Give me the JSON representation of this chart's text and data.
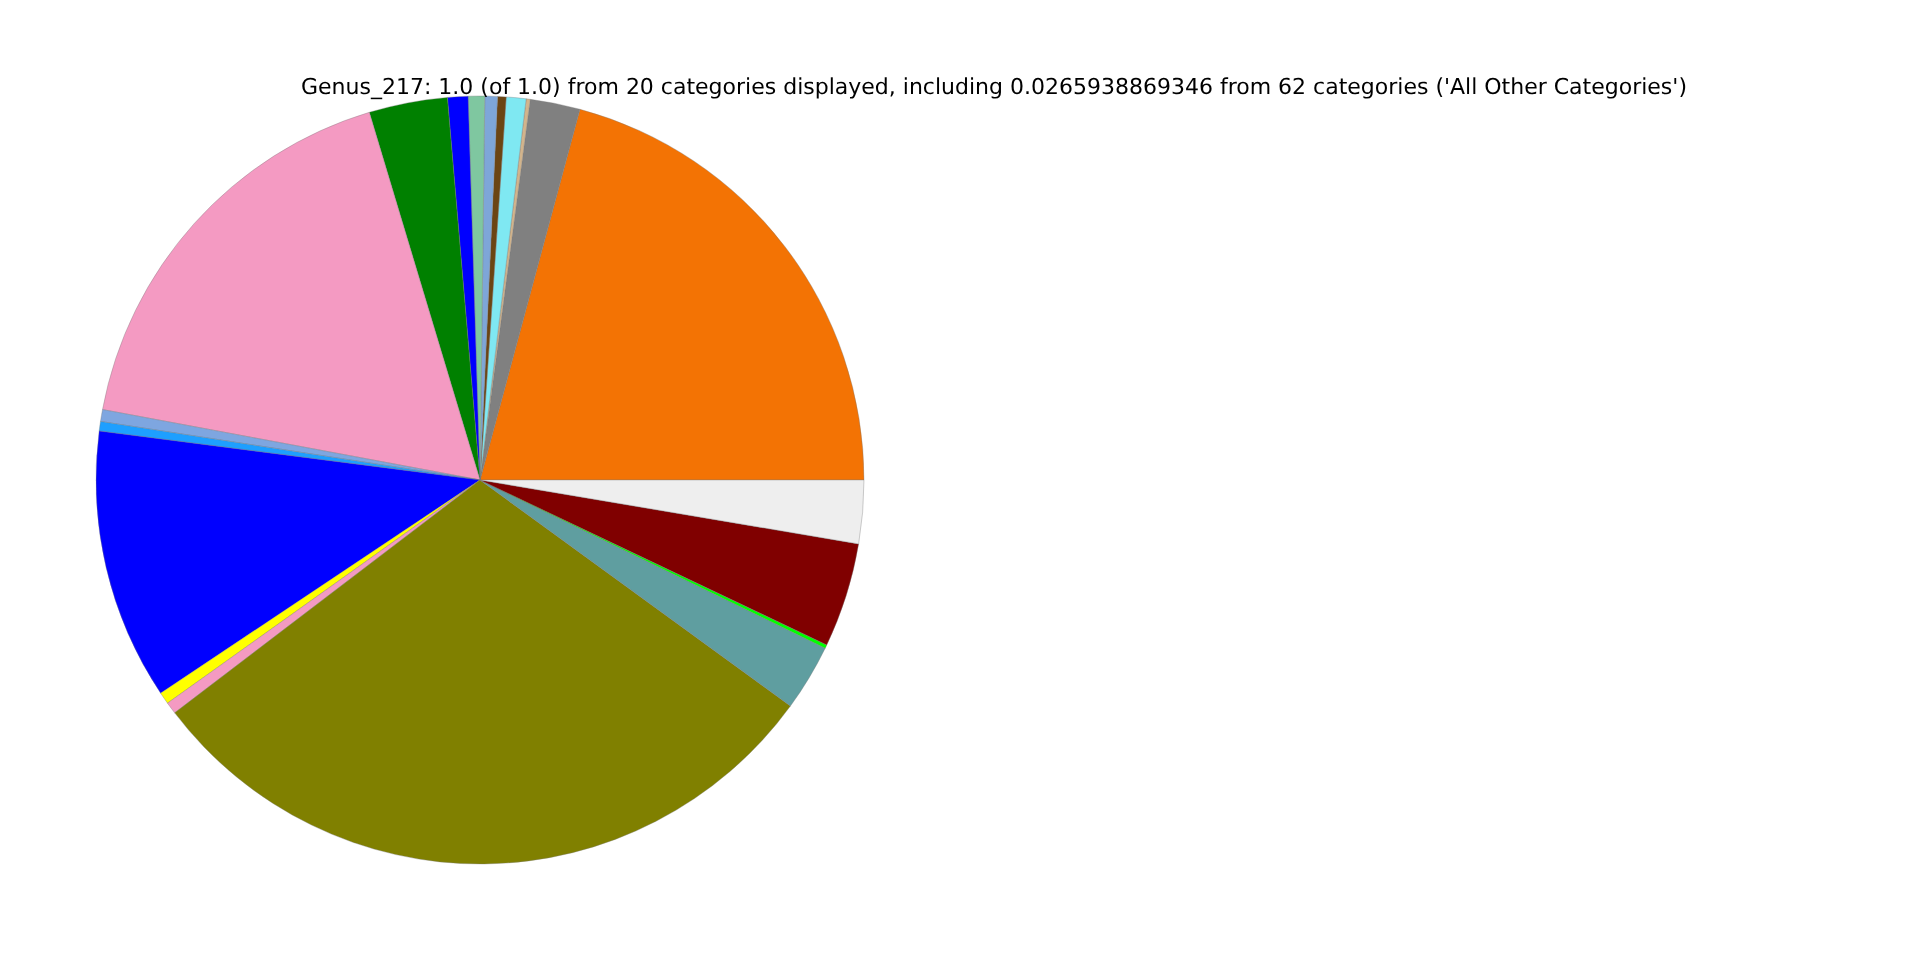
{
  "chart_data": {
    "type": "pie",
    "title": "Genus_217: 1.0 (of 1.0) from 20 categories displayed, including 0.0265938869346 from 62 categories ('All Other Categories')",
    "categories": [
      null,
      null,
      null,
      null,
      null,
      null,
      null,
      null,
      null,
      null,
      null,
      null,
      null,
      null,
      null,
      null,
      null,
      null,
      null,
      null
    ],
    "values": [
      20.8,
      2.1,
      0.17,
      0.83,
      0.36,
      0.53,
      0.69,
      0.86,
      3.3,
      17.4,
      0.5,
      0.4,
      11.4,
      0.5,
      0.5,
      29.6,
      2.8,
      0.15,
      4.4,
      2.66
    ],
    "colors": [
      "#f37304",
      "#808080",
      "#d2b48c",
      "#7fe8f2",
      "#6b4513",
      "#7ea6d8",
      "#7fc7a0",
      "#0000ff",
      "#008000",
      "#f49ac2",
      "#7ea6e0",
      "#1e9fff",
      "#0000ff",
      "#ffff00",
      "#f49ac2",
      "#808000",
      "#5f9ea0",
      "#00ff00",
      "#800000",
      "#eeeeee"
    ]
  }
}
